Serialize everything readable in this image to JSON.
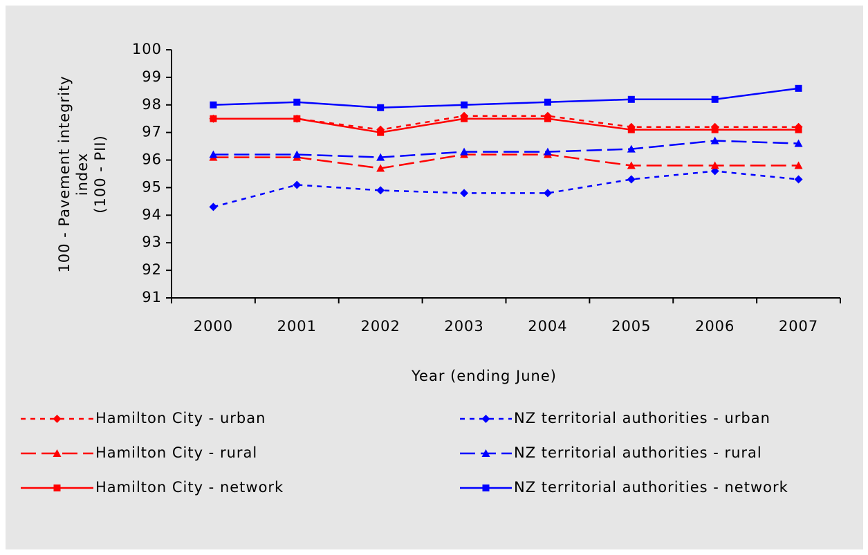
{
  "chart_data": {
    "type": "line",
    "x_label": "Year (ending June)",
    "y_label": [
      "100 - Pavement integrity",
      "index",
      "(100 - PII)"
    ],
    "categories": [
      "2000",
      "2001",
      "2002",
      "2003",
      "2004",
      "2005",
      "2006",
      "2007"
    ],
    "ylim": [
      91,
      100
    ],
    "yticks": [
      91,
      92,
      93,
      94,
      95,
      96,
      97,
      98,
      99,
      100
    ],
    "series": [
      {
        "name": "Hamilton City - urban",
        "color": "#ff0000",
        "dash": "dotted",
        "marker": "diamond",
        "values": [
          97.5,
          97.5,
          97.1,
          97.6,
          97.6,
          97.2,
          97.2,
          97.2
        ]
      },
      {
        "name": "NZ territorial authorities - urban",
        "color": "#0000ff",
        "dash": "dotted",
        "marker": "diamond",
        "values": [
          94.3,
          95.1,
          94.9,
          94.8,
          94.8,
          95.3,
          95.6,
          95.3
        ]
      },
      {
        "name": "Hamilton City - rural",
        "color": "#ff0000",
        "dash": "dashed",
        "marker": "triangle",
        "values": [
          96.1,
          96.1,
          95.7,
          96.2,
          96.2,
          95.8,
          95.8,
          95.8
        ]
      },
      {
        "name": "NZ territorial authorities - rural",
        "color": "#0000ff",
        "dash": "dashed",
        "marker": "triangle",
        "values": [
          96.2,
          96.2,
          96.1,
          96.3,
          96.3,
          96.4,
          96.7,
          96.6
        ]
      },
      {
        "name": "Hamilton City - network",
        "color": "#ff0000",
        "dash": "solid",
        "marker": "square",
        "values": [
          97.5,
          97.5,
          97.0,
          97.5,
          97.5,
          97.1,
          97.1,
          97.1
        ]
      },
      {
        "name": "NZ territorial authorities - network",
        "color": "#0000ff",
        "dash": "solid",
        "marker": "square",
        "values": [
          98.0,
          98.1,
          97.9,
          98.0,
          98.1,
          98.2,
          98.2,
          98.6
        ]
      }
    ]
  }
}
